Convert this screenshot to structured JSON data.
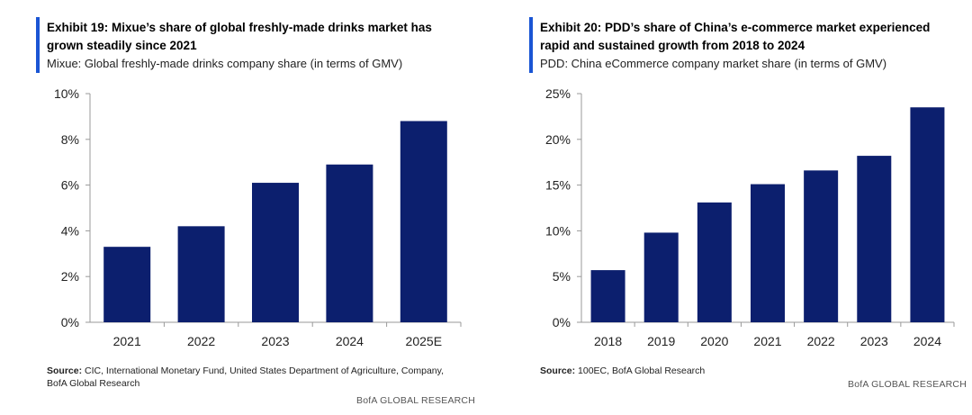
{
  "left": {
    "title": "Exhibit 19: Mixue’s share of global freshly-made drinks market has grown steadily since 2021",
    "subtitle": "Mixue: Global freshly-made drinks company share (in terms of GMV)",
    "source_label": "Source:",
    "source_text": " CIC, International Monetary Fund, United States Department of Agriculture, Company, BofA Global Research",
    "credit": "BofA GLOBAL RESEARCH"
  },
  "right": {
    "title": "Exhibit 20: PDD’s share of China’s e-commerce market experienced rapid and sustained growth from 2018 to 2024",
    "subtitle": "PDD: China eCommerce company market share (in terms of GMV)",
    "source_label": "Source:",
    "source_text": " 100EC, BofA Global Research",
    "credit": "BofA GLOBAL RESEARCH"
  },
  "colors": {
    "bar": "#0c1f6e",
    "accent": "#1a55d4",
    "axis": "#999999"
  },
  "chart_data": [
    {
      "type": "bar",
      "categories": [
        "2021",
        "2022",
        "2023",
        "2024",
        "2025E"
      ],
      "values": [
        3.3,
        4.2,
        6.1,
        6.9,
        8.8
      ],
      "ylim": [
        0,
        10
      ],
      "yticks": [
        "0%",
        "2%",
        "4%",
        "6%",
        "8%",
        "10%"
      ],
      "ytick_values": [
        0,
        2,
        4,
        6,
        8,
        10
      ],
      "xlabel": "",
      "ylabel": ""
    },
    {
      "type": "bar",
      "categories": [
        "2018",
        "2019",
        "2020",
        "2021",
        "2022",
        "2023",
        "2024"
      ],
      "values": [
        5.7,
        9.8,
        13.1,
        15.1,
        16.6,
        18.2,
        23.5
      ],
      "ylim": [
        0,
        25
      ],
      "yticks": [
        "0%",
        "5%",
        "10%",
        "15%",
        "20%",
        "25%"
      ],
      "ytick_values": [
        0,
        5,
        10,
        15,
        20,
        25
      ],
      "xlabel": "",
      "ylabel": ""
    }
  ]
}
